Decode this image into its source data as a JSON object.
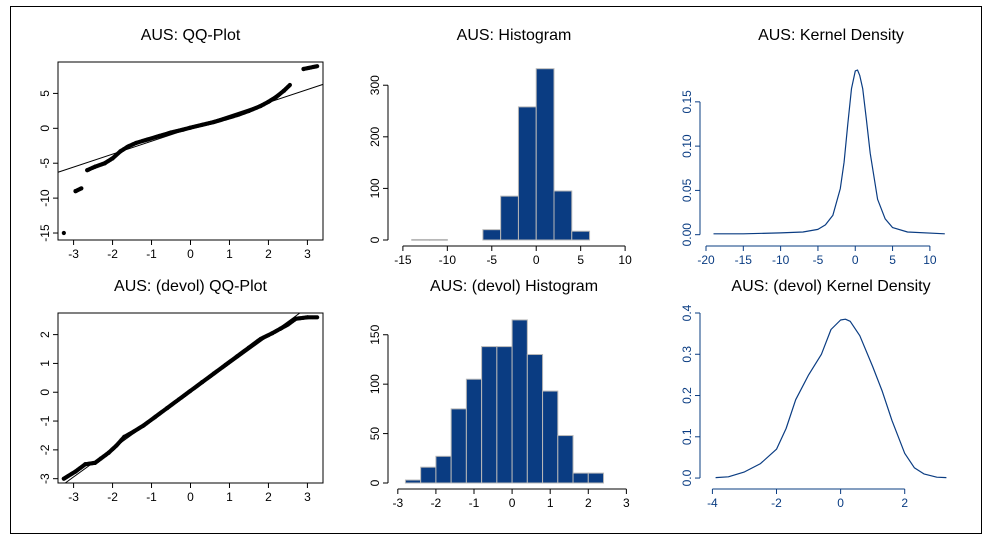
{
  "colors": {
    "bar": "#0a3c82",
    "bar_edge": "#b8b8b8",
    "line": "#000000",
    "kde": "#0a3c82",
    "kde_axis": "#0a3c82",
    "qq_points": "#000000"
  },
  "chart_data": [
    {
      "type": "scatter",
      "title": "AUS: QQ-Plot",
      "xlabel": "",
      "ylabel": "",
      "xlim": [
        -3.4,
        3.4
      ],
      "ylim": [
        -16,
        9.5
      ],
      "xticks": [
        -3,
        -2,
        -1,
        0,
        1,
        2,
        3
      ],
      "yticks": [
        -15,
        -10,
        -5,
        0,
        5
      ],
      "reference_line": {
        "intercept": 0,
        "slope": 1.85
      },
      "points": [
        [
          -3.25,
          -15.0
        ],
        [
          -2.95,
          -9.0
        ],
        [
          -2.8,
          -8.6
        ],
        [
          -2.65,
          -6.0
        ],
        [
          -2.45,
          -5.5
        ],
        [
          -2.2,
          -5.0
        ],
        [
          -2.0,
          -4.3
        ],
        [
          -1.8,
          -3.3
        ],
        [
          -1.6,
          -2.6
        ],
        [
          -1.4,
          -2.1
        ],
        [
          -1.1,
          -1.6
        ],
        [
          -0.8,
          -1.1
        ],
        [
          -0.5,
          -0.6
        ],
        [
          -0.2,
          -0.2
        ],
        [
          0.0,
          0.1
        ],
        [
          0.3,
          0.5
        ],
        [
          0.6,
          0.9
        ],
        [
          0.9,
          1.4
        ],
        [
          1.2,
          1.9
        ],
        [
          1.5,
          2.5
        ],
        [
          1.8,
          3.2
        ],
        [
          2.0,
          3.8
        ],
        [
          2.2,
          4.5
        ],
        [
          2.4,
          5.4
        ],
        [
          2.55,
          6.2
        ],
        [
          2.9,
          8.5
        ],
        [
          3.25,
          8.9
        ]
      ]
    },
    {
      "type": "bar",
      "title": "AUS: Histogram",
      "xlabel": "",
      "ylabel": "",
      "xlim": [
        -16,
        11
      ],
      "ylim": [
        0,
        345
      ],
      "xticks": [
        -15,
        -10,
        -5,
        0,
        5,
        10
      ],
      "yticks": [
        0,
        100,
        200,
        300
      ],
      "bins": [
        [
          -14,
          -12,
          1
        ],
        [
          -12,
          -10,
          1
        ],
        [
          -6,
          -4,
          20
        ],
        [
          -4,
          -2,
          85
        ],
        [
          -2,
          0,
          258
        ],
        [
          0,
          2,
          332
        ],
        [
          2,
          4,
          95
        ],
        [
          4,
          6,
          17
        ]
      ]
    },
    {
      "type": "line",
      "title": "AUS: Kernel Density",
      "xlabel": "",
      "ylabel": "",
      "xlim": [
        -20,
        13.5
      ],
      "ylim": [
        -0.006,
        0.195
      ],
      "xticks": [
        -20,
        -15,
        -10,
        -5,
        0,
        5,
        10
      ],
      "yticks": [
        0.0,
        0.05,
        0.1,
        0.15
      ],
      "x": [
        -19,
        -15,
        -10,
        -7,
        -5,
        -4,
        -3,
        -2,
        -1.5,
        -1,
        -0.5,
        0,
        0.3,
        0.6,
        1,
        1.5,
        2,
        3,
        4,
        5,
        7,
        12
      ],
      "y": [
        0.001,
        0.001,
        0.002,
        0.003,
        0.006,
        0.011,
        0.022,
        0.052,
        0.082,
        0.125,
        0.165,
        0.185,
        0.186,
        0.18,
        0.165,
        0.13,
        0.092,
        0.04,
        0.018,
        0.008,
        0.003,
        0.001
      ]
    },
    {
      "type": "scatter",
      "title": "AUS: (devol) QQ-Plot",
      "xlabel": "",
      "ylabel": "",
      "xlim": [
        -3.4,
        3.4
      ],
      "ylim": [
        -3.15,
        2.75
      ],
      "xticks": [
        -3,
        -2,
        -1,
        0,
        1,
        2,
        3
      ],
      "yticks": [
        -3,
        -2,
        -1,
        0,
        1,
        2
      ],
      "reference_line": {
        "intercept": 0,
        "slope": 0.98
      },
      "points": [
        [
          -3.25,
          -3.0
        ],
        [
          -2.95,
          -2.75
        ],
        [
          -2.7,
          -2.5
        ],
        [
          -2.45,
          -2.45
        ],
        [
          -2.3,
          -2.3
        ],
        [
          -2.1,
          -2.1
        ],
        [
          -1.9,
          -1.85
        ],
        [
          -1.7,
          -1.55
        ],
        [
          -1.5,
          -1.4
        ],
        [
          -1.2,
          -1.15
        ],
        [
          -0.9,
          -0.85
        ],
        [
          -0.6,
          -0.55
        ],
        [
          -0.3,
          -0.25
        ],
        [
          0.0,
          0.05
        ],
        [
          0.3,
          0.35
        ],
        [
          0.6,
          0.65
        ],
        [
          0.9,
          0.95
        ],
        [
          1.2,
          1.25
        ],
        [
          1.5,
          1.55
        ],
        [
          1.8,
          1.85
        ],
        [
          2.1,
          2.05
        ],
        [
          2.3,
          2.2
        ],
        [
          2.5,
          2.35
        ],
        [
          2.7,
          2.55
        ],
        [
          3.0,
          2.6
        ],
        [
          3.25,
          2.6
        ]
      ]
    },
    {
      "type": "bar",
      "title": "AUS: (devol) Histogram",
      "xlabel": "",
      "ylabel": "",
      "xlim": [
        -3.1,
        3.2
      ],
      "ylim": [
        0,
        172
      ],
      "xticks": [
        -3,
        -2,
        -1,
        0,
        1,
        2,
        3
      ],
      "yticks": [
        0,
        50,
        100,
        150
      ],
      "bins": [
        [
          -2.8,
          -2.4,
          3
        ],
        [
          -2.4,
          -2.0,
          16
        ],
        [
          -2.0,
          -1.6,
          27
        ],
        [
          -1.6,
          -1.2,
          75
        ],
        [
          -1.2,
          -0.8,
          105
        ],
        [
          -0.8,
          -0.4,
          138
        ],
        [
          -0.4,
          0.0,
          138
        ],
        [
          0.0,
          0.4,
          165
        ],
        [
          0.4,
          0.8,
          130
        ],
        [
          0.8,
          1.2,
          93
        ],
        [
          1.2,
          1.6,
          48
        ],
        [
          1.6,
          2.0,
          10
        ],
        [
          2.0,
          2.4,
          10
        ]
      ]
    },
    {
      "type": "line",
      "title": "AUS: (devol) Kernel Density",
      "xlabel": "",
      "ylabel": "",
      "xlim": [
        -4.2,
        3.6
      ],
      "ylim": [
        -0.012,
        0.4
      ],
      "xticks": [
        -4,
        -2,
        0,
        2
      ],
      "yticks": [
        0.0,
        0.1,
        0.2,
        0.3,
        0.4
      ],
      "x": [
        -3.9,
        -3.5,
        -3.0,
        -2.5,
        -2.0,
        -1.7,
        -1.4,
        -1.0,
        -0.6,
        -0.3,
        0.0,
        0.15,
        0.3,
        0.6,
        1.0,
        1.3,
        1.6,
        2.0,
        2.3,
        2.6,
        3.0,
        3.3
      ],
      "y": [
        0.001,
        0.003,
        0.015,
        0.035,
        0.07,
        0.12,
        0.19,
        0.25,
        0.3,
        0.36,
        0.383,
        0.385,
        0.38,
        0.345,
        0.27,
        0.21,
        0.14,
        0.06,
        0.025,
        0.01,
        0.002,
        0.001
      ]
    }
  ]
}
